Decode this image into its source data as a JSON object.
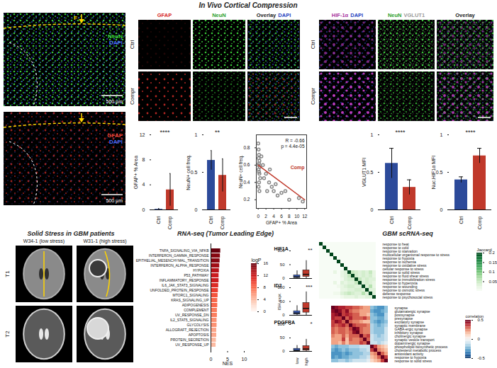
{
  "figure": {
    "cortical_compression": {
      "title": "In Vivo Cortical Compression",
      "overview_images": [
        {
          "channels": [
            {
              "text": "NeuN",
              "color": "#3ddc3d"
            },
            {
              "text": "DAPI",
              "color": "#4a6cff"
            }
          ],
          "marker_label": "F",
          "scale_bar": "500 µm"
        },
        {
          "channels": [
            {
              "text": "GFAP",
              "color": "#ff4a3d"
            },
            {
              "text": "DAPI",
              "color": "#4a6cff"
            }
          ],
          "scale_bar": "500 µm"
        }
      ],
      "image_grids": [
        {
          "columns": [
            [
              {
                "text": "GFAP",
                "color": "#d62728"
              }
            ],
            [
              {
                "text": "NeuN",
                "color": "#2ca02c"
              }
            ],
            [
              {
                "text": "Overlay",
                "color": "#222222"
              },
              {
                "text": "DAPI",
                "color": "#1f3fbf"
              }
            ]
          ],
          "rows": [
            "Ctrl",
            "Compr"
          ]
        },
        {
          "columns": [
            [
              {
                "text": "HIF-1α",
                "color": "#a8329f"
              },
              {
                "text": "DAPI",
                "color": "#1f3fbf"
              }
            ],
            [
              {
                "text": "NeuN",
                "color": "#2ca02c"
              },
              {
                "text": "VGLUT1",
                "color": "#999999"
              }
            ],
            [
              {
                "text": "Overlay",
                "color": "#222222"
              }
            ]
          ],
          "rows": [
            "Ctrl",
            "Compr"
          ]
        }
      ]
    },
    "gbm_patients": {
      "title": "Solid Stress in GBM patients",
      "columns": [
        "W34-1 (low stress)",
        "W31-1 (high stress)"
      ],
      "rows": [
        "T1",
        "T2"
      ]
    }
  },
  "chart_data": [
    {
      "type": "bar",
      "ylabel": "GFAP+ % Area",
      "categories": [
        "Ctrl",
        "Comp"
      ],
      "values": [
        0.1,
        3.2
      ],
      "errors": [
        0.1,
        2.6
      ],
      "colors": [
        "#2c4a9a",
        "#c0392b"
      ],
      "ylim": [
        0,
        12
      ],
      "yticks": [
        0,
        4,
        8,
        12
      ],
      "significance": "****"
    },
    {
      "type": "bar",
      "ylabel": "NeuN+ cell freq.",
      "categories": [
        "Ctrl",
        "Comp"
      ],
      "values": [
        0.66,
        0.46
      ],
      "errors": [
        0.13,
        0.22
      ],
      "colors": [
        "#2c4a9a",
        "#c0392b"
      ],
      "ylim": [
        0,
        1
      ],
      "yticks": [
        0,
        0.5,
        1
      ],
      "significance": "**"
    },
    {
      "type": "scatter",
      "xlabel": "GFAP+ % Area",
      "ylabel": "NeuN+ cell freq.",
      "x": [
        0,
        0.1,
        0.2,
        0.1,
        0.3,
        0.2,
        0,
        0.4,
        0.1,
        0.2,
        0.3,
        0.5,
        0.2,
        0.1,
        0.3,
        0.8,
        1.2,
        1.5,
        2,
        2.3,
        2.8,
        3,
        3.5,
        4,
        4.5,
        5,
        6,
        7,
        8,
        10.5,
        11.5
      ],
      "y": [
        0.85,
        0.78,
        0.72,
        0.68,
        0.65,
        0.62,
        0.6,
        0.58,
        0.55,
        0.52,
        0.5,
        0.45,
        0.4,
        0.35,
        0.3,
        0.7,
        0.6,
        0.45,
        0.5,
        0.3,
        0.4,
        0.55,
        0.35,
        0.3,
        0.38,
        0.25,
        0.28,
        0.3,
        0.2,
        0.22,
        0.18
      ],
      "color": "#888888",
      "marker": "circle_open",
      "fit": {
        "x": [
          0,
          12
        ],
        "y": [
          0.6,
          0.2
        ],
        "color": "#c0392b",
        "label": "Comp"
      },
      "annotations": [
        "R = -0.66",
        "p = 4.4e-05"
      ],
      "xlim": [
        -0.5,
        12.5
      ],
      "xticks": [
        0,
        2,
        4,
        6,
        8,
        10,
        12
      ],
      "ylim": [
        0.1,
        0.95
      ],
      "yticks": [
        0.2,
        0.4,
        0.6,
        0.8
      ]
    },
    {
      "type": "bar",
      "ylabel": "VGLUT1 MFI",
      "categories": [
        "Ctrl",
        "Comp"
      ],
      "values": [
        0.62,
        0.3
      ],
      "errors": [
        0.2,
        0.1
      ],
      "colors": [
        "#2c4a9a",
        "#c0392b"
      ],
      "ylim": [
        0,
        1
      ],
      "yticks": [
        0,
        0.5,
        1
      ],
      "significance": "****"
    },
    {
      "type": "bar",
      "ylabel": "Nuc.HIF1α MFI",
      "categories": [
        "Ctrl",
        "Comp"
      ],
      "values": [
        0.4,
        0.72
      ],
      "errors": [
        0.04,
        0.1
      ],
      "colors": [
        "#2c4a9a",
        "#c0392b"
      ],
      "ylim": [
        0,
        1
      ],
      "yticks": [
        0,
        0.5,
        1
      ],
      "significance": "****"
    },
    {
      "type": "bar",
      "orientation": "horizontal",
      "title": "RNA-seq (Tumor Leading Edge)",
      "xlabel": "NES",
      "categories": [
        "TNFA_SIGNALING_VIA_NFKB",
        "INTERFERON_GAMMA_RESPONSE",
        "EPITHELIAL_MESENCHYMAL_TRANSITION",
        "INTERFERON_ALPHA_RESPONSE",
        "HYPOXIA",
        "P53_PATHWAY",
        "INFLAMMATORY_RESPONSE",
        "IL6_JAK_STAT3_SIGNALING",
        "UNFOLDED_PROTEIN_RESPONSE",
        "MTORC1_SIGNALING",
        "KRAS_SIGNALING_UP",
        "ADIPOGENESIS",
        "COMPLEMENT",
        "UV_RESPONSE_DN",
        "IL2_STAT5_SIGNALING",
        "GLYCOLYSIS",
        "ALLOGRAFT_REJECTION",
        "APOPTOSIS",
        "PROTEIN_SECRETION",
        "UV_RESPONSE_UP"
      ],
      "values": [
        2.9,
        2.8,
        2.7,
        2.6,
        2.5,
        2.4,
        2.4,
        2.3,
        2.2,
        2.1,
        2.0,
        2.0,
        1.9,
        1.9,
        1.8,
        1.8,
        1.7,
        1.7,
        1.6,
        1.5
      ],
      "logp": [
        16,
        15,
        15,
        14,
        13,
        12,
        12,
        11,
        10,
        9,
        8,
        8,
        7,
        7,
        6,
        6,
        5,
        5,
        4,
        4
      ],
      "xlim": [
        0,
        10
      ],
      "xticks": [
        0,
        5,
        10
      ],
      "color_label": "logP",
      "color_range": [
        0,
        16
      ],
      "color_ticks": [
        0,
        4,
        8,
        12,
        16
      ]
    },
    {
      "type": "box",
      "ylabel": "ISH expr.",
      "categories": [
        "low",
        "high"
      ],
      "colors": [
        "#3b5fc0",
        "#c0392b"
      ],
      "ylim": [
        0,
        100
      ],
      "yticks": [
        0,
        50,
        100
      ],
      "panels": [
        {
          "title": "HIF1A",
          "significance": "**",
          "boxes": [
            {
              "min": 0,
              "q1": 2,
              "median": 6,
              "q3": 12,
              "max": 28
            },
            {
              "min": 0,
              "q1": 6,
              "median": 15,
              "q3": 30,
              "max": 65
            }
          ]
        },
        {
          "title": "ID2",
          "significance": "***",
          "boxes": [
            {
              "min": 0,
              "q1": 3,
              "median": 8,
              "q3": 15,
              "max": 35
            },
            {
              "min": 0,
              "q1": 10,
              "median": 25,
              "q3": 45,
              "max": 85
            }
          ]
        },
        {
          "title": "PDGFRA",
          "significance": "*",
          "boxes": [
            {
              "min": 0,
              "q1": 1,
              "median": 4,
              "q3": 10,
              "max": 22
            },
            {
              "min": 0,
              "q1": 3,
              "median": 9,
              "q3": 20,
              "max": 45
            }
          ]
        }
      ]
    },
    {
      "type": "heatmap",
      "title": "GBM scRNA-seq",
      "labels": [
        "response to heat",
        "response to cold",
        "response to starvation",
        "multicellular organismal response to stress",
        "response to hypoxia",
        "response to ischemia",
        "response to oxidative stress",
        "cellular response to stress",
        "response to solid stress",
        "response to fluid shear stress",
        "response to immobilization stress",
        "response to hyperoxia",
        "response to wounding",
        "response to osmotic stress",
        "defense response",
        "response to psychosocial stress"
      ],
      "cells": [
        [
          0.2,
          0,
          0,
          0,
          0,
          0,
          0,
          0,
          0,
          0,
          0,
          0,
          0,
          0,
          0,
          0
        ],
        [
          0,
          0.2,
          0,
          0,
          0,
          0,
          0,
          0,
          0,
          0,
          0,
          0,
          0,
          0,
          0,
          0
        ],
        [
          0,
          0,
          0.2,
          0,
          0,
          0,
          0,
          0,
          0,
          0,
          0,
          0,
          0,
          0,
          0,
          0
        ],
        [
          0,
          0,
          0,
          0.2,
          0,
          0,
          0,
          0,
          0,
          0,
          0,
          0,
          0,
          0,
          0,
          0
        ],
        [
          0,
          0,
          0,
          0,
          0.2,
          0,
          0,
          0,
          0,
          0,
          0,
          0,
          0,
          0,
          0,
          0
        ],
        [
          0,
          0,
          0,
          0,
          0,
          0.2,
          0,
          0,
          0,
          0,
          0,
          0,
          0,
          0,
          0,
          0
        ],
        [
          0,
          0,
          0,
          0,
          0,
          0,
          0.2,
          0,
          0,
          0,
          0,
          0,
          0,
          0,
          0,
          0
        ],
        [
          0,
          0,
          0,
          0,
          0,
          0,
          0,
          0.2,
          0,
          0,
          0,
          0,
          0,
          0,
          0,
          0
        ],
        [
          0,
          0,
          0,
          0,
          0.02,
          0,
          0.02,
          0.03,
          0.2,
          0.05,
          0.04,
          0.03,
          0.04,
          0.03,
          0.05,
          0.02
        ],
        [
          0,
          0,
          0,
          0,
          0,
          0,
          0.02,
          0.03,
          0.05,
          0.2,
          0.04,
          0.03,
          0.04,
          0.03,
          0.04,
          0.02
        ],
        [
          0,
          0,
          0,
          0,
          0,
          0,
          0.01,
          0.03,
          0.04,
          0.04,
          0.2,
          0.05,
          0.03,
          0.04,
          0.03,
          0.03
        ],
        [
          0,
          0,
          0,
          0,
          0.02,
          0,
          0.03,
          0.02,
          0.03,
          0.03,
          0.05,
          0.2,
          0.03,
          0.04,
          0.03,
          0.02
        ],
        [
          0,
          0,
          0,
          0,
          0,
          0.01,
          0.02,
          0.03,
          0.04,
          0.04,
          0.03,
          0.03,
          0.2,
          0.03,
          0.06,
          0.02
        ],
        [
          0,
          0,
          0,
          0,
          0,
          0,
          0.02,
          0.02,
          0.03,
          0.03,
          0.04,
          0.04,
          0.03,
          0.2,
          0.03,
          0.03
        ],
        [
          0,
          0,
          0,
          0,
          0.01,
          0.01,
          0.03,
          0.04,
          0.05,
          0.04,
          0.03,
          0.03,
          0.06,
          0.03,
          0.2,
          0.03
        ],
        [
          0,
          0,
          0,
          0,
          0,
          0,
          0.01,
          0.02,
          0.02,
          0.02,
          0.03,
          0.02,
          0.02,
          0.03,
          0.03,
          0.2
        ]
      ],
      "color_label": "Jaccard",
      "color_range": [
        0,
        0.2
      ],
      "color_ticks": [
        0.05,
        0.1,
        0.15,
        0.2
      ]
    },
    {
      "type": "heatmap",
      "labels": [
        "synapse",
        "glutamatergic synapse",
        "postsynapse",
        "presynapse",
        "excitatory synapse",
        "synaptic membrane",
        "GABA-ergic synapse",
        "inhibitory synapse",
        "cholinergic synapse",
        "synaptic vesicle transport",
        "dopaminergic synapse",
        "phospholipid biosynthetic process",
        "cholesterol metabolic process",
        "antioxidant activity",
        "response to hypoxia",
        "response to solid stress"
      ],
      "cells": [
        [
          0.5,
          0.45,
          0.4,
          0.4,
          0.35,
          0.35,
          0.3,
          0.3,
          0.25,
          0.2,
          0.2,
          -0.2,
          -0.25,
          -0.3,
          -0.3,
          -0.2
        ],
        [
          0.45,
          0.5,
          0.45,
          0.35,
          0.45,
          0.3,
          0.25,
          0.25,
          0.2,
          0.2,
          0.2,
          -0.25,
          -0.3,
          -0.3,
          -0.25,
          -0.2
        ],
        [
          0.4,
          0.45,
          0.5,
          0.35,
          0.4,
          0.35,
          0.3,
          0.3,
          0.2,
          0.2,
          0.15,
          -0.2,
          -0.25,
          -0.3,
          -0.3,
          -0.15
        ],
        [
          0.4,
          0.35,
          0.35,
          0.5,
          0.3,
          0.4,
          0.3,
          0.3,
          0.3,
          0.35,
          0.25,
          -0.2,
          -0.2,
          -0.25,
          -0.25,
          -0.15
        ],
        [
          0.35,
          0.45,
          0.4,
          0.3,
          0.5,
          0.3,
          0.25,
          0.25,
          0.2,
          0.15,
          0.15,
          -0.2,
          -0.25,
          -0.3,
          -0.25,
          -0.2
        ],
        [
          0.35,
          0.3,
          0.35,
          0.4,
          0.3,
          0.5,
          0.35,
          0.3,
          0.3,
          0.3,
          0.25,
          -0.15,
          -0.2,
          -0.25,
          -0.2,
          -0.15
        ],
        [
          0.3,
          0.25,
          0.3,
          0.3,
          0.25,
          0.35,
          0.5,
          0.45,
          0.3,
          0.25,
          0.25,
          -0.15,
          -0.2,
          -0.2,
          -0.2,
          -0.1
        ],
        [
          0.3,
          0.25,
          0.3,
          0.3,
          0.25,
          0.3,
          0.45,
          0.5,
          0.3,
          0.25,
          0.25,
          -0.15,
          -0.2,
          -0.2,
          -0.2,
          -0.1
        ],
        [
          0.25,
          0.2,
          0.2,
          0.3,
          0.2,
          0.3,
          0.3,
          0.3,
          0.5,
          0.3,
          0.35,
          -0.1,
          -0.15,
          -0.2,
          -0.15,
          -0.1
        ],
        [
          0.2,
          0.2,
          0.2,
          0.35,
          0.15,
          0.3,
          0.25,
          0.25,
          0.3,
          0.5,
          0.3,
          -0.1,
          -0.15,
          -0.15,
          -0.15,
          -0.1
        ],
        [
          0.2,
          0.2,
          0.15,
          0.25,
          0.15,
          0.25,
          0.25,
          0.25,
          0.35,
          0.3,
          0.5,
          -0.1,
          -0.1,
          -0.15,
          -0.1,
          -0.05
        ],
        [
          -0.2,
          -0.25,
          -0.2,
          -0.2,
          -0.2,
          -0.15,
          -0.15,
          -0.15,
          -0.1,
          -0.1,
          -0.1,
          0.5,
          0.35,
          0.2,
          0.15,
          0.1
        ],
        [
          -0.25,
          -0.3,
          -0.25,
          -0.2,
          -0.25,
          -0.2,
          -0.2,
          -0.2,
          -0.15,
          -0.15,
          -0.1,
          0.35,
          0.5,
          0.25,
          0.2,
          0.15
        ],
        [
          -0.3,
          -0.3,
          -0.3,
          -0.25,
          -0.3,
          -0.25,
          -0.2,
          -0.2,
          -0.2,
          -0.15,
          -0.15,
          0.2,
          0.25,
          0.5,
          0.3,
          0.2
        ],
        [
          -0.3,
          -0.25,
          -0.3,
          -0.25,
          -0.25,
          -0.2,
          -0.2,
          -0.2,
          -0.15,
          -0.15,
          -0.1,
          0.15,
          0.2,
          0.3,
          0.5,
          0.35
        ],
        [
          -0.2,
          -0.2,
          -0.15,
          -0.15,
          -0.2,
          -0.15,
          -0.1,
          -0.1,
          -0.1,
          -0.1,
          -0.05,
          0.1,
          0.15,
          0.2,
          0.35,
          0.5
        ]
      ],
      "color_label": "correlation",
      "color_range": [
        -0.5,
        0.5
      ],
      "color_ticks": [
        -0.5,
        0,
        0.5
      ]
    }
  ]
}
